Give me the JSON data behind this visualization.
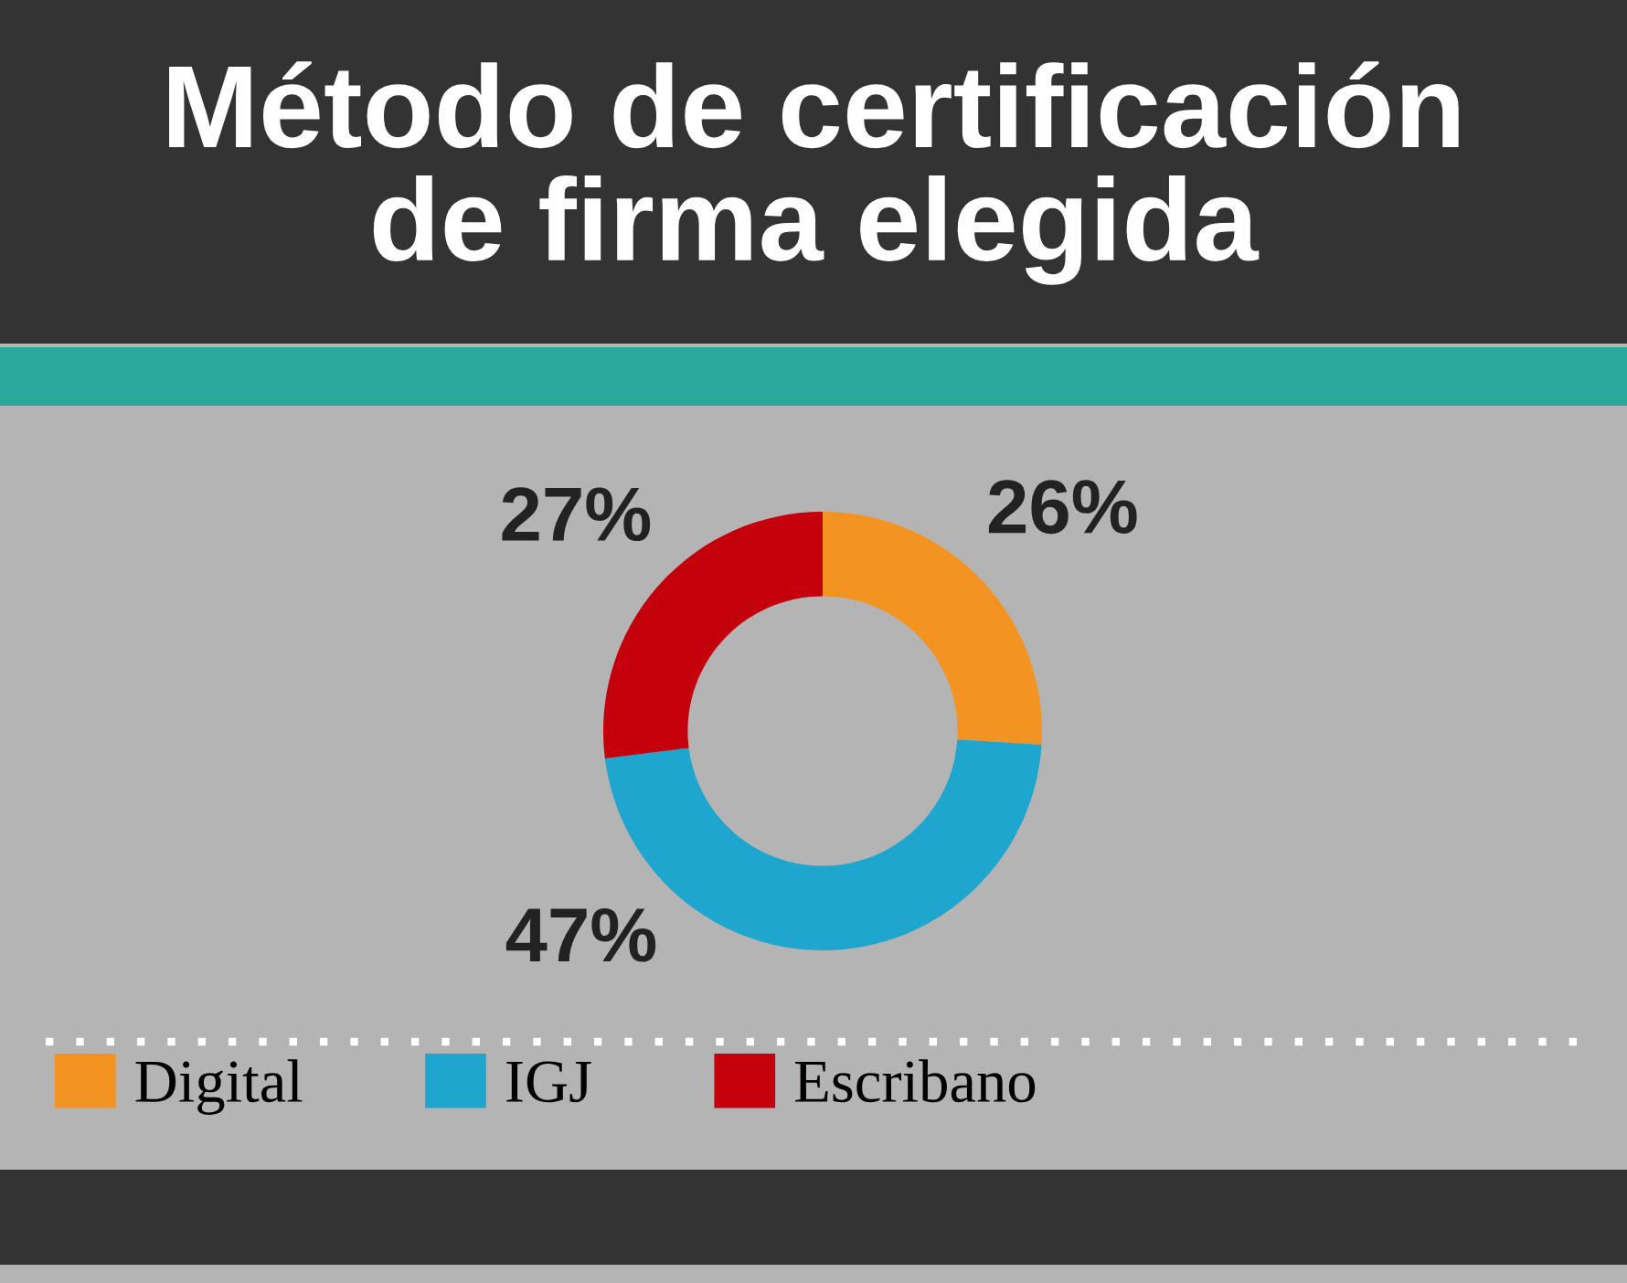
{
  "chart_data": {
    "type": "donut",
    "title": "Método de certificación\nde firma elegida",
    "categories": [
      "Digital",
      "IGJ",
      "Escribano"
    ],
    "values": [
      26,
      47,
      27
    ],
    "colors": [
      "#f39422",
      "#1ea6cf",
      "#c4000c"
    ],
    "value_labels": [
      "26%",
      "47%",
      "27%"
    ],
    "legend": "bottom left"
  }
}
